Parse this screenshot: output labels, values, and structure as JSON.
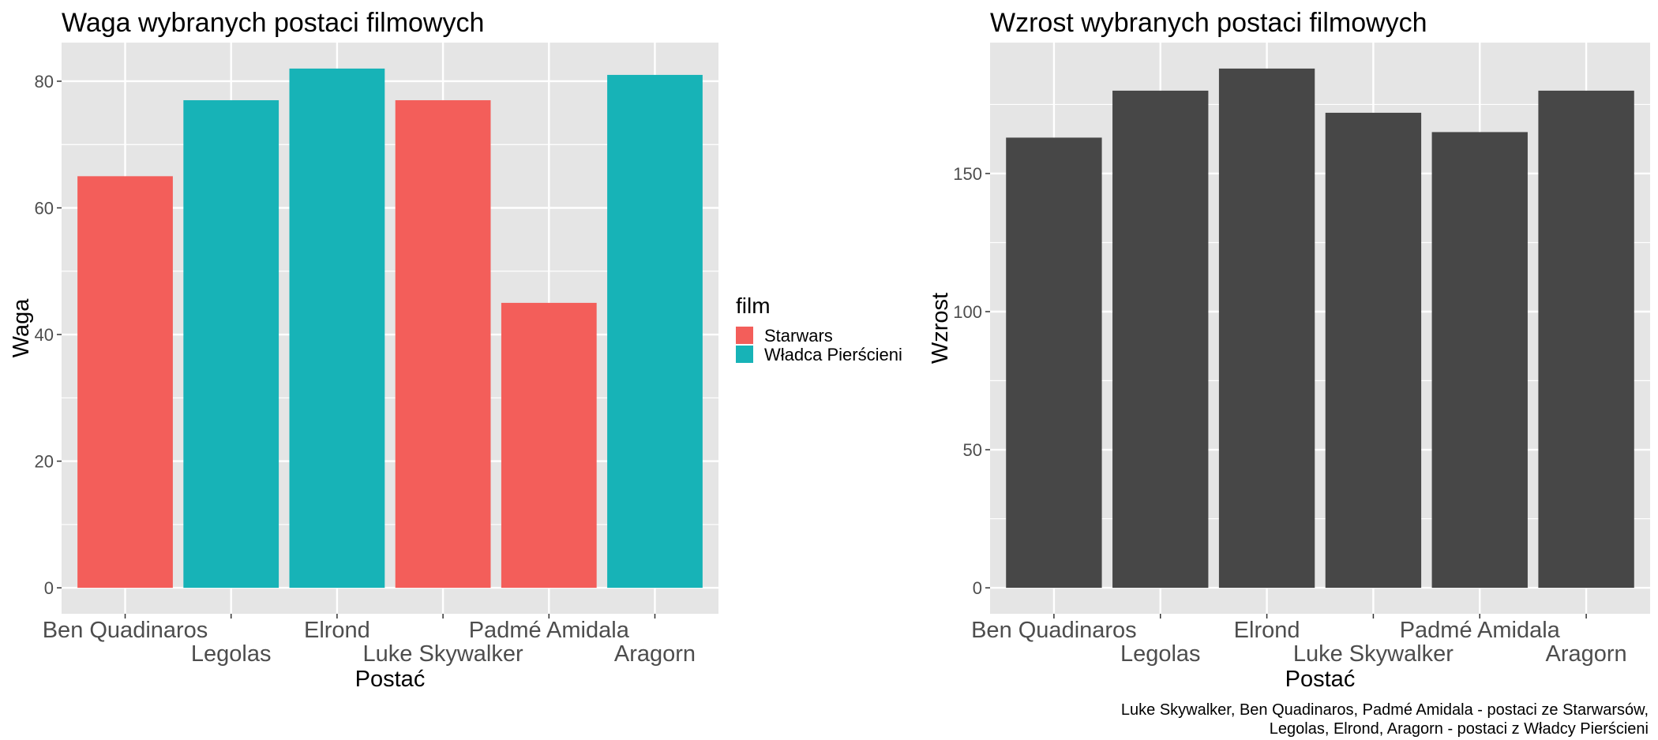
{
  "chart_data": [
    {
      "type": "bar",
      "title": "Waga wybranych postaci filmowych",
      "xlabel": "Postać",
      "ylabel": "Waga",
      "categories": [
        "Ben Quadinaros",
        "Legolas",
        "Elrond",
        "Luke Skywalker",
        "Padmé Amidala",
        "Aragorn"
      ],
      "values": [
        65,
        77,
        82,
        77,
        45,
        81
      ],
      "groups": [
        "Starwars",
        "Władca Pierścieni",
        "Władca Pierścieni",
        "Starwars",
        "Starwars",
        "Władca Pierścieni"
      ],
      "ylim": [
        0,
        86.1
      ],
      "yticks": [
        0,
        20,
        40,
        60,
        80
      ],
      "grid": true,
      "legend": {
        "title": "film",
        "placement": "right",
        "entries": [
          {
            "label": "Starwars",
            "color": "#f35e5a"
          },
          {
            "label": "Władca Pierścieni",
            "color": "#17b3b7"
          }
        ]
      }
    },
    {
      "type": "bar",
      "title": "Wzrost wybranych postaci filmowych",
      "xlabel": "Postać",
      "ylabel": "Wzrost",
      "categories": [
        "Ben Quadinaros",
        "Legolas",
        "Elrond",
        "Luke Skywalker",
        "Padmé Amidala",
        "Aragorn"
      ],
      "values": [
        163,
        180,
        188,
        172,
        165,
        180
      ],
      "color": "#474747",
      "ylim": [
        0,
        197.4
      ],
      "yticks": [
        0,
        50,
        100,
        150
      ],
      "grid": true
    }
  ],
  "caption": [
    "Luke Skywalker, Ben Quadinaros, Padmé Amidala - postaci ze Starwarsów,",
    "Legolas, Elrond, Aragorn - postaci z Władcy Pierścieni"
  ],
  "colors": {
    "panel_background": "#e5e5e5",
    "grid_line": "#ffffff",
    "tick_text": "#4d4d4d"
  }
}
